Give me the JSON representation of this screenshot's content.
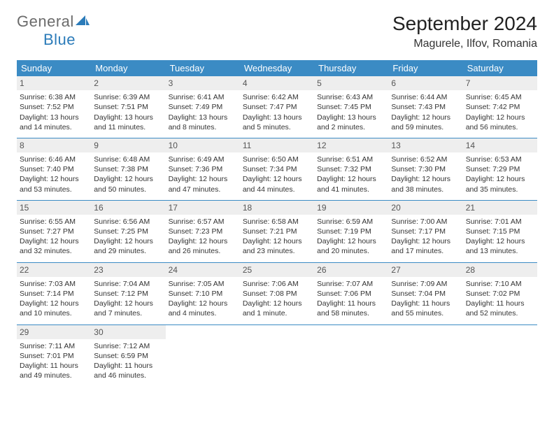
{
  "logo": {
    "general": "General",
    "blue": "Blue"
  },
  "title": "September 2024",
  "location": "Magurele, Ilfov, Romania",
  "colors": {
    "header_bg": "#3b8bc4",
    "header_text": "#ffffff",
    "daynum_bg": "#eeeeee",
    "rule": "#3b8bc4",
    "logo_gray": "#6b6b6b",
    "logo_blue": "#2b7bb9"
  },
  "day_names": [
    "Sunday",
    "Monday",
    "Tuesday",
    "Wednesday",
    "Thursday",
    "Friday",
    "Saturday"
  ],
  "weeks": [
    [
      {
        "n": "1",
        "sr": "Sunrise: 6:38 AM",
        "ss": "Sunset: 7:52 PM",
        "d1": "Daylight: 13 hours",
        "d2": "and 14 minutes."
      },
      {
        "n": "2",
        "sr": "Sunrise: 6:39 AM",
        "ss": "Sunset: 7:51 PM",
        "d1": "Daylight: 13 hours",
        "d2": "and 11 minutes."
      },
      {
        "n": "3",
        "sr": "Sunrise: 6:41 AM",
        "ss": "Sunset: 7:49 PM",
        "d1": "Daylight: 13 hours",
        "d2": "and 8 minutes."
      },
      {
        "n": "4",
        "sr": "Sunrise: 6:42 AM",
        "ss": "Sunset: 7:47 PM",
        "d1": "Daylight: 13 hours",
        "d2": "and 5 minutes."
      },
      {
        "n": "5",
        "sr": "Sunrise: 6:43 AM",
        "ss": "Sunset: 7:45 PM",
        "d1": "Daylight: 13 hours",
        "d2": "and 2 minutes."
      },
      {
        "n": "6",
        "sr": "Sunrise: 6:44 AM",
        "ss": "Sunset: 7:43 PM",
        "d1": "Daylight: 12 hours",
        "d2": "and 59 minutes."
      },
      {
        "n": "7",
        "sr": "Sunrise: 6:45 AM",
        "ss": "Sunset: 7:42 PM",
        "d1": "Daylight: 12 hours",
        "d2": "and 56 minutes."
      }
    ],
    [
      {
        "n": "8",
        "sr": "Sunrise: 6:46 AM",
        "ss": "Sunset: 7:40 PM",
        "d1": "Daylight: 12 hours",
        "d2": "and 53 minutes."
      },
      {
        "n": "9",
        "sr": "Sunrise: 6:48 AM",
        "ss": "Sunset: 7:38 PM",
        "d1": "Daylight: 12 hours",
        "d2": "and 50 minutes."
      },
      {
        "n": "10",
        "sr": "Sunrise: 6:49 AM",
        "ss": "Sunset: 7:36 PM",
        "d1": "Daylight: 12 hours",
        "d2": "and 47 minutes."
      },
      {
        "n": "11",
        "sr": "Sunrise: 6:50 AM",
        "ss": "Sunset: 7:34 PM",
        "d1": "Daylight: 12 hours",
        "d2": "and 44 minutes."
      },
      {
        "n": "12",
        "sr": "Sunrise: 6:51 AM",
        "ss": "Sunset: 7:32 PM",
        "d1": "Daylight: 12 hours",
        "d2": "and 41 minutes."
      },
      {
        "n": "13",
        "sr": "Sunrise: 6:52 AM",
        "ss": "Sunset: 7:30 PM",
        "d1": "Daylight: 12 hours",
        "d2": "and 38 minutes."
      },
      {
        "n": "14",
        "sr": "Sunrise: 6:53 AM",
        "ss": "Sunset: 7:29 PM",
        "d1": "Daylight: 12 hours",
        "d2": "and 35 minutes."
      }
    ],
    [
      {
        "n": "15",
        "sr": "Sunrise: 6:55 AM",
        "ss": "Sunset: 7:27 PM",
        "d1": "Daylight: 12 hours",
        "d2": "and 32 minutes."
      },
      {
        "n": "16",
        "sr": "Sunrise: 6:56 AM",
        "ss": "Sunset: 7:25 PM",
        "d1": "Daylight: 12 hours",
        "d2": "and 29 minutes."
      },
      {
        "n": "17",
        "sr": "Sunrise: 6:57 AM",
        "ss": "Sunset: 7:23 PM",
        "d1": "Daylight: 12 hours",
        "d2": "and 26 minutes."
      },
      {
        "n": "18",
        "sr": "Sunrise: 6:58 AM",
        "ss": "Sunset: 7:21 PM",
        "d1": "Daylight: 12 hours",
        "d2": "and 23 minutes."
      },
      {
        "n": "19",
        "sr": "Sunrise: 6:59 AM",
        "ss": "Sunset: 7:19 PM",
        "d1": "Daylight: 12 hours",
        "d2": "and 20 minutes."
      },
      {
        "n": "20",
        "sr": "Sunrise: 7:00 AM",
        "ss": "Sunset: 7:17 PM",
        "d1": "Daylight: 12 hours",
        "d2": "and 17 minutes."
      },
      {
        "n": "21",
        "sr": "Sunrise: 7:01 AM",
        "ss": "Sunset: 7:15 PM",
        "d1": "Daylight: 12 hours",
        "d2": "and 13 minutes."
      }
    ],
    [
      {
        "n": "22",
        "sr": "Sunrise: 7:03 AM",
        "ss": "Sunset: 7:14 PM",
        "d1": "Daylight: 12 hours",
        "d2": "and 10 minutes."
      },
      {
        "n": "23",
        "sr": "Sunrise: 7:04 AM",
        "ss": "Sunset: 7:12 PM",
        "d1": "Daylight: 12 hours",
        "d2": "and 7 minutes."
      },
      {
        "n": "24",
        "sr": "Sunrise: 7:05 AM",
        "ss": "Sunset: 7:10 PM",
        "d1": "Daylight: 12 hours",
        "d2": "and 4 minutes."
      },
      {
        "n": "25",
        "sr": "Sunrise: 7:06 AM",
        "ss": "Sunset: 7:08 PM",
        "d1": "Daylight: 12 hours",
        "d2": "and 1 minute."
      },
      {
        "n": "26",
        "sr": "Sunrise: 7:07 AM",
        "ss": "Sunset: 7:06 PM",
        "d1": "Daylight: 11 hours",
        "d2": "and 58 minutes."
      },
      {
        "n": "27",
        "sr": "Sunrise: 7:09 AM",
        "ss": "Sunset: 7:04 PM",
        "d1": "Daylight: 11 hours",
        "d2": "and 55 minutes."
      },
      {
        "n": "28",
        "sr": "Sunrise: 7:10 AM",
        "ss": "Sunset: 7:02 PM",
        "d1": "Daylight: 11 hours",
        "d2": "and 52 minutes."
      }
    ],
    [
      {
        "n": "29",
        "sr": "Sunrise: 7:11 AM",
        "ss": "Sunset: 7:01 PM",
        "d1": "Daylight: 11 hours",
        "d2": "and 49 minutes."
      },
      {
        "n": "30",
        "sr": "Sunrise: 7:12 AM",
        "ss": "Sunset: 6:59 PM",
        "d1": "Daylight: 11 hours",
        "d2": "and 46 minutes."
      },
      null,
      null,
      null,
      null,
      null
    ]
  ]
}
